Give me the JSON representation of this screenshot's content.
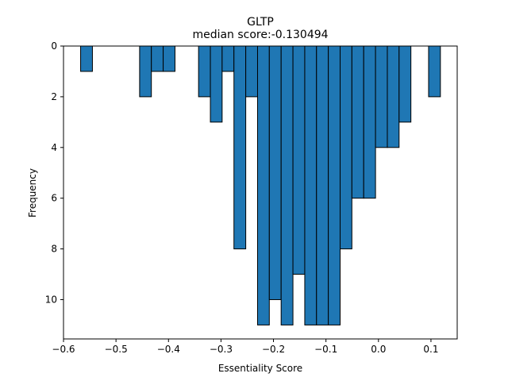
{
  "chart_data": {
    "type": "bar",
    "title": "GLTP",
    "subtitle": "median score:-0.130494",
    "xlabel": "Essentiality Score",
    "ylabel": "Frequency",
    "xlim": [
      -0.6,
      0.15
    ],
    "ylim": [
      0,
      11.55
    ],
    "y_inverted": true,
    "x_ticks": [
      -0.6,
      -0.5,
      -0.4,
      -0.3,
      -0.2,
      -0.1,
      0.0,
      0.1
    ],
    "x_tick_labels": [
      "−0.6",
      "−0.5",
      "−0.4",
      "−0.3",
      "−0.2",
      "−0.1",
      "0.0",
      "0.1"
    ],
    "y_ticks": [
      0,
      2,
      4,
      6,
      8,
      10
    ],
    "y_tick_labels": [
      "0",
      "2",
      "4",
      "6",
      "8",
      "10"
    ],
    "bins": [
      {
        "x0": -0.5674,
        "x1": -0.5449,
        "value": 1
      },
      {
        "x0": -0.455,
        "x1": -0.4326,
        "value": 2
      },
      {
        "x0": -0.4326,
        "x1": -0.4101,
        "value": 1
      },
      {
        "x0": -0.4101,
        "x1": -0.3876,
        "value": 1
      },
      {
        "x0": -0.3427,
        "x1": -0.3202,
        "value": 2
      },
      {
        "x0": -0.3202,
        "x1": -0.2978,
        "value": 3
      },
      {
        "x0": -0.2978,
        "x1": -0.2753,
        "value": 1
      },
      {
        "x0": -0.2753,
        "x1": -0.2528,
        "value": 8
      },
      {
        "x0": -0.2528,
        "x1": -0.2303,
        "value": 2
      },
      {
        "x0": -0.2303,
        "x1": -0.2079,
        "value": 11
      },
      {
        "x0": -0.2079,
        "x1": -0.1854,
        "value": 10
      },
      {
        "x0": -0.1854,
        "x1": -0.1629,
        "value": 11
      },
      {
        "x0": -0.1629,
        "x1": -0.1404,
        "value": 9
      },
      {
        "x0": -0.1404,
        "x1": -0.118,
        "value": 11
      },
      {
        "x0": -0.118,
        "x1": -0.0955,
        "value": 11
      },
      {
        "x0": -0.0955,
        "x1": -0.073,
        "value": 11
      },
      {
        "x0": -0.073,
        "x1": -0.0506,
        "value": 8
      },
      {
        "x0": -0.0506,
        "x1": -0.0281,
        "value": 6
      },
      {
        "x0": -0.0281,
        "x1": -0.0056,
        "value": 6
      },
      {
        "x0": -0.0056,
        "x1": 0.0169,
        "value": 4
      },
      {
        "x0": 0.0169,
        "x1": 0.0393,
        "value": 4
      },
      {
        "x0": 0.0393,
        "x1": 0.0618,
        "value": 3
      },
      {
        "x0": 0.0955,
        "x1": 0.118,
        "value": 2
      }
    ],
    "bar_color": "#1f77b4",
    "edge_color": "#000000",
    "grid": false,
    "legend": "none"
  }
}
